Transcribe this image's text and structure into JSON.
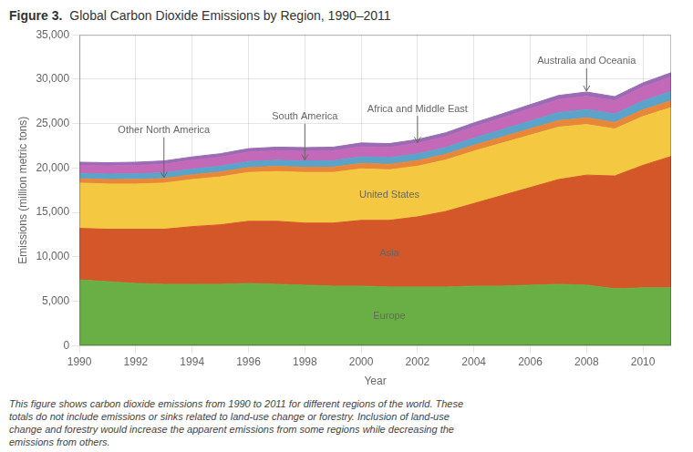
{
  "chart_data": {
    "type": "area",
    "stacked": true,
    "title": "Figure 3.",
    "subtitle": "Global Carbon Dioxide Emissions by Region, 1990–2011",
    "xlabel": "Year",
    "ylabel": "Emissions (million metric tons)",
    "x": [
      1990,
      1991,
      1992,
      1993,
      1994,
      1995,
      1996,
      1997,
      1998,
      1999,
      2000,
      2001,
      2002,
      2003,
      2004,
      2005,
      2006,
      2007,
      2008,
      2009,
      2010,
      2011
    ],
    "series": [
      {
        "name": "Europe",
        "color": "#6AAF45",
        "values": [
          7400,
          7200,
          7000,
          6900,
          6900,
          6900,
          7000,
          6900,
          6800,
          6700,
          6700,
          6600,
          6600,
          6600,
          6700,
          6700,
          6800,
          6900,
          6800,
          6400,
          6500,
          6500
        ]
      },
      {
        "name": "Asia",
        "color": "#D4572A",
        "values": [
          5800,
          5900,
          6100,
          6200,
          6500,
          6700,
          7000,
          7100,
          7000,
          7100,
          7400,
          7500,
          7900,
          8500,
          9300,
          10200,
          11000,
          11800,
          12400,
          12700,
          13800,
          14800
        ]
      },
      {
        "name": "United States",
        "color": "#F5C842",
        "values": [
          5100,
          5100,
          5100,
          5200,
          5300,
          5400,
          5500,
          5600,
          5700,
          5700,
          5800,
          5700,
          5700,
          5800,
          5900,
          5900,
          5900,
          5900,
          5700,
          5300,
          5500,
          5500
        ]
      },
      {
        "name": "Other North America",
        "color": "#E8873A",
        "values": [
          500,
          510,
          520,
          530,
          540,
          550,
          560,
          580,
          590,
          600,
          620,
          630,
          640,
          650,
          670,
          690,
          720,
          740,
          750,
          740,
          760,
          780
        ]
      },
      {
        "name": "South America",
        "color": "#5BA3C9",
        "values": [
          600,
          610,
          620,
          630,
          650,
          660,
          680,
          700,
          710,
          720,
          740,
          740,
          750,
          760,
          790,
          830,
          870,
          910,
          940,
          940,
          990,
          1040
        ]
      },
      {
        "name": "Africa and Middle East",
        "color": "#C469B8",
        "values": [
          900,
          920,
          940,
          960,
          980,
          1010,
          1040,
          1060,
          1080,
          1100,
          1130,
          1150,
          1180,
          1220,
          1270,
          1320,
          1380,
          1440,
          1490,
          1490,
          1560,
          1620
        ]
      },
      {
        "name": "Australia and Oceania",
        "color": "#9B6BB5",
        "values": [
          350,
          360,
          370,
          375,
          380,
          390,
          400,
          410,
          420,
          425,
          430,
          430,
          435,
          440,
          450,
          460,
          470,
          480,
          480,
          470,
          480,
          490
        ]
      }
    ],
    "xlim": [
      1990,
      2011
    ],
    "xticks": [
      1990,
      1992,
      1994,
      1996,
      1998,
      2000,
      2002,
      2004,
      2006,
      2008,
      2010
    ],
    "ylim": [
      0,
      35000
    ],
    "yticks": [
      0,
      {
        "value": 5000,
        "label": "5,000"
      },
      {
        "value": 10000,
        "label": "10,000"
      },
      {
        "value": 15000,
        "label": "15,000"
      },
      {
        "value": 20000,
        "label": "20,000"
      },
      {
        "value": 25000,
        "label": "25,000"
      },
      {
        "value": 30000,
        "label": "30,000"
      },
      {
        "value": 35000,
        "label": "35,000"
      }
    ],
    "grid": true,
    "annotations": [
      "Europe",
      "Asia",
      "United States",
      "Other North America",
      "South America",
      "Africa and Middle East",
      "Australia and Oceania"
    ],
    "caption": "This figure shows carbon dioxide emissions from 1990 to 2011 for different regions of the world. These\ntotals do not include emissions or sinks related to land-use change or forestry. Inclusion of land-use\nchange and forestry would increase the apparent emissions from some regions while decreasing the\nemissions from others."
  }
}
